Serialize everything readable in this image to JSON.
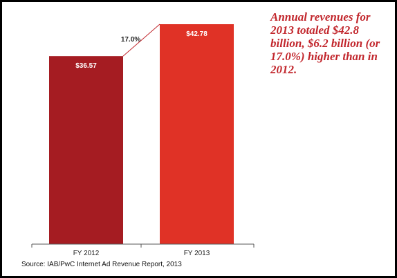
{
  "chart_data": {
    "type": "bar",
    "categories": [
      "FY 2012",
      "FY 2013"
    ],
    "values": [
      36.57,
      42.78
    ],
    "value_labels": [
      "$36.57",
      "$42.78"
    ],
    "colors": [
      "#a51c22",
      "#e03226"
    ],
    "growth_label": "17.0%",
    "ylim": [
      0,
      42.78
    ],
    "title": "",
    "xlabel": "",
    "ylabel": ""
  },
  "callout": {
    "text": "Annual revenues for 2013 totaled $42.8 billion, $6.2 billion (or 17.0%) higher than in 2012."
  },
  "source": {
    "text": "Source: IAB/PwC Internet Ad Revenue Report, 2013"
  }
}
